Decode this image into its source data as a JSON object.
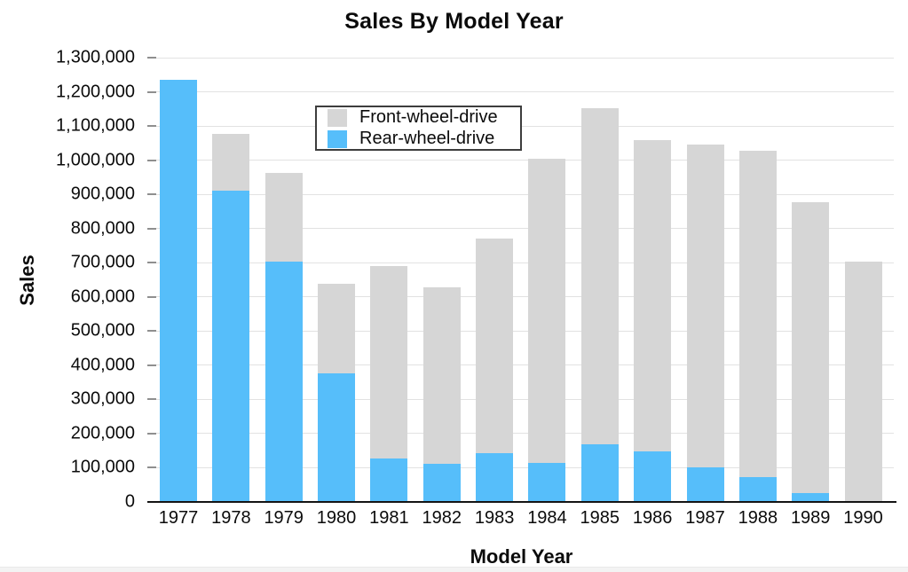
{
  "window": {
    "background": "#ffffff",
    "bottom_strip_color": "#f3f3f3"
  },
  "chart_data": {
    "type": "bar",
    "stacked": true,
    "title": "Sales By Model Year",
    "xlabel": "Model Year",
    "ylabel": "Sales",
    "categories": [
      "1977",
      "1978",
      "1979",
      "1980",
      "1981",
      "1982",
      "1983",
      "1984",
      "1985",
      "1986",
      "1987",
      "1988",
      "1989",
      "1990"
    ],
    "series": [
      {
        "name": "Front-wheel-drive",
        "color": "#d6d6d6",
        "values": [
          0,
          168000,
          259000,
          263000,
          562000,
          517000,
          627000,
          889000,
          985000,
          912000,
          946000,
          955000,
          852000,
          703000
        ]
      },
      {
        "name": "Rear-wheel-drive",
        "color": "#56befa",
        "values": [
          1235000,
          910000,
          703000,
          375000,
          128000,
          112000,
          143000,
          114000,
          168000,
          147000,
          100000,
          72000,
          25000,
          0
        ]
      }
    ],
    "totals": [
      1235000,
      1078000,
      962000,
      638000,
      690000,
      629000,
      770000,
      1003000,
      1153000,
      1059000,
      1046000,
      1027000,
      877000,
      703000
    ],
    "ylim": [
      0,
      1300000
    ],
    "ytick_step": 100000,
    "ytick_labels": [
      "0",
      "100,000",
      "200,000",
      "300,000",
      "400,000",
      "500,000",
      "600,000",
      "700,000",
      "800,000",
      "900,000",
      "1,000,000",
      "1,100,000",
      "1,200,000",
      "1,300,000"
    ],
    "grid": true,
    "legend_position": "upper-left-inside",
    "legend_order": [
      "Front-wheel-drive",
      "Rear-wheel-drive"
    ]
  }
}
